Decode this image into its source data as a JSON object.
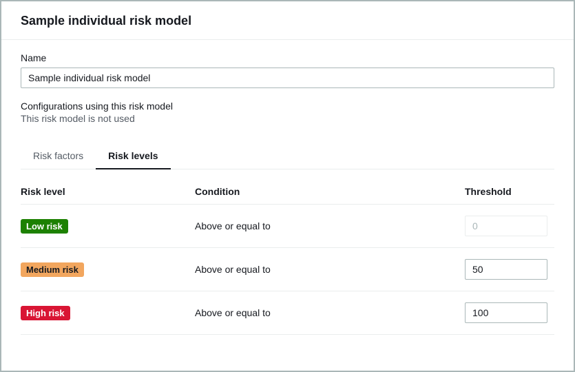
{
  "header": {
    "title": "Sample individual risk model"
  },
  "form": {
    "name_label": "Name",
    "name_value": "Sample individual risk model",
    "config_label": "Configurations using this risk model",
    "config_status": "This risk model is not used"
  },
  "tabs": {
    "factors_label": "Risk factors",
    "levels_label": "Risk levels"
  },
  "table": {
    "columns": {
      "level": "Risk level",
      "condition": "Condition",
      "threshold": "Threshold"
    },
    "rows": [
      {
        "badge_label": "Low risk",
        "badge_color": "#1d8102",
        "condition": "Above or equal to",
        "threshold": "",
        "threshold_placeholder": "0",
        "disabled": true
      },
      {
        "badge_label": "Medium risk",
        "badge_color": "#f2a65e",
        "badge_text_color": "#16191f",
        "condition": "Above or equal to",
        "threshold": "50",
        "disabled": false
      },
      {
        "badge_label": "High risk",
        "badge_color": "#d91534",
        "condition": "Above or equal to",
        "threshold": "100",
        "disabled": false
      }
    ]
  },
  "colors": {
    "border": "#aab7b8",
    "divider": "#eaeded",
    "text_primary": "#16191f",
    "text_secondary": "#545b64"
  }
}
